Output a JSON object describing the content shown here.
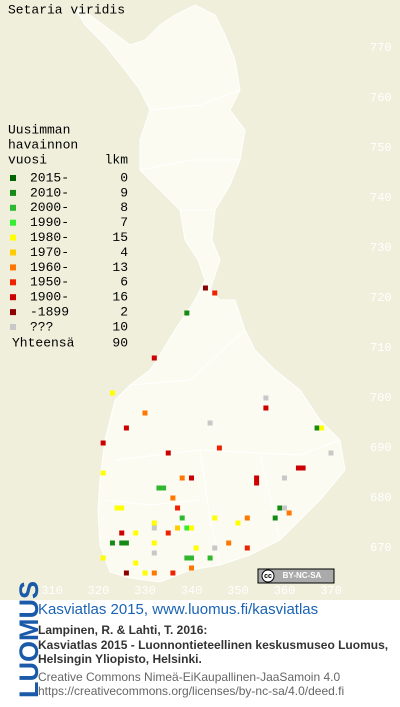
{
  "map": {
    "title": "Setaria viridis",
    "legend": {
      "header": [
        "Uusimman",
        "havainnon",
        "vuosi"
      ],
      "count_header": "lkm",
      "periods": [
        {
          "label": "2015-",
          "count": 0,
          "color": "#006400",
          "points": []
        },
        {
          "label": "2010-",
          "count": 9,
          "color": "#158a15",
          "points": [
            [
              339,
              717
            ],
            [
              367,
              694
            ],
            [
              359,
              678
            ],
            [
              323,
              671
            ],
            [
              325,
              671
            ],
            [
              326,
              671
            ],
            [
              358,
              676
            ]
          ]
        },
        {
          "label": "2000-",
          "count": 8,
          "color": "#2fb82f",
          "points": [
            [
              333,
              682
            ],
            [
              334,
              682
            ],
            [
              338,
              676
            ],
            [
              339,
              668
            ],
            [
              340,
              668
            ],
            [
              344,
              668
            ]
          ]
        },
        {
          "label": "1990-",
          "count": 7,
          "color": "#33ee33",
          "points": [
            [
              339,
              674
            ]
          ]
        },
        {
          "label": "1980-",
          "count": 15,
          "color": "#ffff00",
          "points": [
            [
              323,
              701
            ],
            [
              368,
              694
            ],
            [
              321,
              685
            ],
            [
              324,
              678
            ],
            [
              325,
              678
            ],
            [
              332,
              675
            ],
            [
              345,
              676
            ],
            [
              350,
              675
            ],
            [
              328,
              673
            ],
            [
              340,
              674
            ],
            [
              341,
              670
            ],
            [
              332,
              671
            ],
            [
              328,
              667
            ],
            [
              330,
              665
            ],
            [
              321,
              668
            ]
          ]
        },
        {
          "label": "1970-",
          "count": 4,
          "color": "#ffcc00",
          "points": [
            [
              337,
              674
            ]
          ]
        },
        {
          "label": "1960-",
          "count": 13,
          "color": "#ff7700",
          "points": [
            [
              330,
              697
            ],
            [
              338,
              684
            ],
            [
              336,
              680
            ],
            [
              361,
              677
            ],
            [
              348,
              671
            ],
            [
              340,
              666
            ],
            [
              332,
              665
            ],
            [
              352,
              676
            ]
          ]
        },
        {
          "label": "1950-",
          "count": 6,
          "color": "#ee2200",
          "points": [
            [
              345,
              721
            ],
            [
              337,
              678
            ],
            [
              335,
              673
            ],
            [
              352,
              670
            ],
            [
              336,
              665
            ],
            [
              346,
              690
            ]
          ]
        },
        {
          "label": "1900-",
          "count": 16,
          "color": "#cc0000",
          "points": [
            [
              332,
              708
            ],
            [
              356,
              698
            ],
            [
              326,
              694
            ],
            [
              335,
              689
            ],
            [
              321,
              691
            ],
            [
              363,
              686
            ],
            [
              364,
              686
            ],
            [
              354,
              684
            ],
            [
              354,
              683
            ],
            [
              340,
              684
            ],
            [
              325,
              673
            ]
          ]
        },
        {
          "label": "-1899",
          "count": 2,
          "color": "#8b0000",
          "points": [
            [
              343,
              722
            ],
            [
              326,
              665
            ]
          ]
        },
        {
          "label": "???",
          "count": 10,
          "color": "#c8c8c8",
          "points": [
            [
              356,
              700
            ],
            [
              344,
              695
            ],
            [
              370,
              689
            ],
            [
              360,
              684
            ],
            [
              360,
              678
            ],
            [
              332,
              674
            ],
            [
              345,
              670
            ],
            [
              332,
              669
            ]
          ]
        }
      ],
      "total_label": "Yhteensä",
      "total": 90
    },
    "xticks": [
      310,
      320,
      330,
      340,
      350,
      360,
      370
    ],
    "yticks": [
      770,
      760,
      750,
      740,
      730,
      720,
      710,
      700,
      690,
      680,
      670
    ],
    "badge": {
      "cc": "cc",
      "text": "BY-NC-SA"
    }
  },
  "footer": {
    "logo": "LUOMUS",
    "headline": "Kasviatlas 2015, www.luomus.fi/kasviatlas",
    "citation": [
      "Lampinen, R. & Lahti, T. 2016:",
      "Kasviatlas 2015 - Luonnontieteellinen keskusmuseo Luomus,",
      "Helsingin Yliopisto, Helsinki."
    ],
    "license": [
      "Creative Commons Nimeä-EiKaupallinen-JaaSamoin 4.0",
      "https://creativecommons.org/licenses/by-nc-sa/4.0/deed.fi"
    ]
  }
}
